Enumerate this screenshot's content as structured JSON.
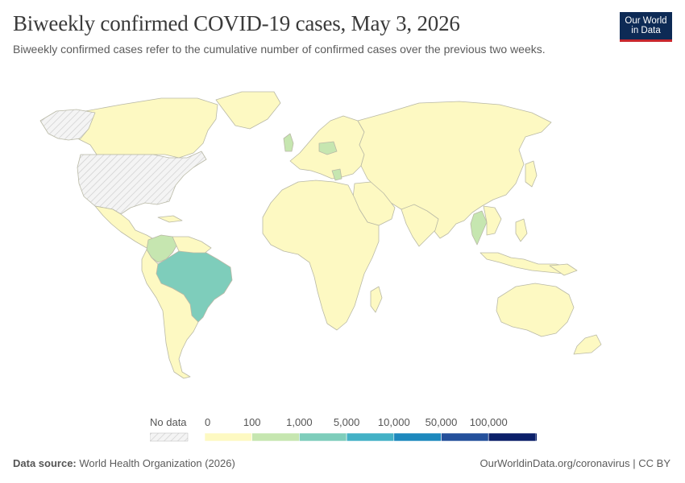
{
  "header": {
    "title": "Biweekly confirmed COVID-19 cases, May 3, 2026",
    "subtitle": "Biweekly confirmed cases refer to the cumulative number of confirmed cases over the previous two weeks."
  },
  "logo": {
    "line1": "Our World",
    "line2": "in Data",
    "bg_color": "#0d2a55",
    "accent_color": "#c8272d"
  },
  "legend": {
    "no_data_label": "No data",
    "ticks": [
      "0",
      "100",
      "1,000",
      "5,000",
      "10,000",
      "50,000",
      "100,000"
    ],
    "bin_colors": [
      "#fdf9c2",
      "#c6e6b0",
      "#7ecdbb",
      "#43b1c6",
      "#1d88bd",
      "#24509b",
      "#0b2069"
    ]
  },
  "map_colors": {
    "default_country": "#fdf9c2",
    "no_data": "#f2f2f2",
    "ocean": "#ffffff",
    "border": "#b9b9a6"
  },
  "regions": [
    {
      "name": "Brazil",
      "bin": "1,000–5,000"
    },
    {
      "name": "Colombia",
      "bin": "100–1,000"
    },
    {
      "name": "Thailand",
      "bin": "100–1,000"
    },
    {
      "name": "United Kingdom",
      "bin": "100–1,000"
    },
    {
      "name": "Poland",
      "bin": "100–1,000"
    },
    {
      "name": "Greece",
      "bin": "100–1,000"
    },
    {
      "name": "United States",
      "bin": "No data"
    },
    {
      "name": "Greenland",
      "bin": "No data"
    }
  ],
  "footer": {
    "source_label": "Data source:",
    "source_text": "World Health Organization (2026)",
    "right_text": "OurWorldinData.org/coronavirus | CC BY"
  }
}
